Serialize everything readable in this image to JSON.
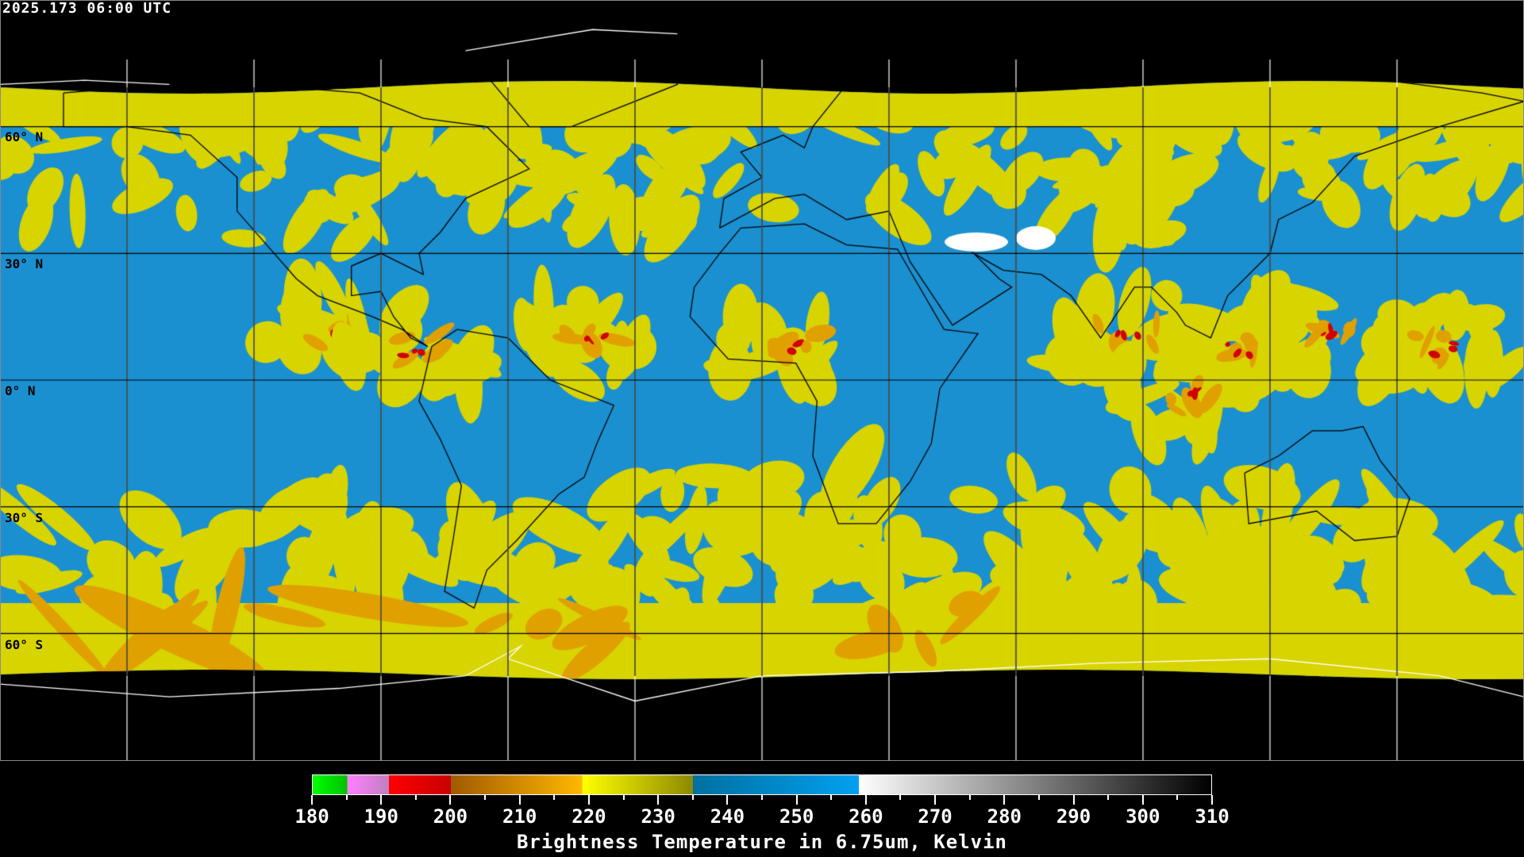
{
  "header": {
    "timestamp": "2025.173 06:00 UTC"
  },
  "map": {
    "projection": "equirectangular",
    "latitude_labels": [
      "60° N",
      "30° N",
      "0° N",
      "30° S",
      "60° S"
    ],
    "grid_spacing_degrees": 30,
    "colors": {
      "moist_cold": "#d8d400",
      "dry": "#1a90d0",
      "coastline_in_data": "#000000",
      "coastline_polar": "#ffffff",
      "grid": "#000000",
      "polar_grid": "#ffffff"
    }
  },
  "colorbar": {
    "title": "Brightness Temperature in 6.75um, Kelvin",
    "min": 180,
    "max": 310,
    "tick_labels": [
      "180",
      "190",
      "200",
      "210",
      "220",
      "230",
      "240",
      "250",
      "260",
      "270",
      "280",
      "290",
      "300",
      "310"
    ],
    "segments": [
      {
        "from": 180,
        "to": 185,
        "start": "#00ff00",
        "end": "#00c000"
      },
      {
        "from": 185,
        "to": 191,
        "start": "#ff80ff",
        "end": "#c080c0"
      },
      {
        "from": 191,
        "to": 200,
        "start": "#ff0000",
        "end": "#c80000"
      },
      {
        "from": 200,
        "to": 219,
        "start": "#a05a00",
        "end": "#ffb800"
      },
      {
        "from": 219,
        "to": 235,
        "start": "#ffff00",
        "end": "#8c8a00"
      },
      {
        "from": 235,
        "to": 259,
        "start": "#0070a0",
        "end": "#00a0f0"
      },
      {
        "from": 259,
        "to": 310,
        "start": "#ffffff",
        "end": "#000000"
      }
    ]
  }
}
